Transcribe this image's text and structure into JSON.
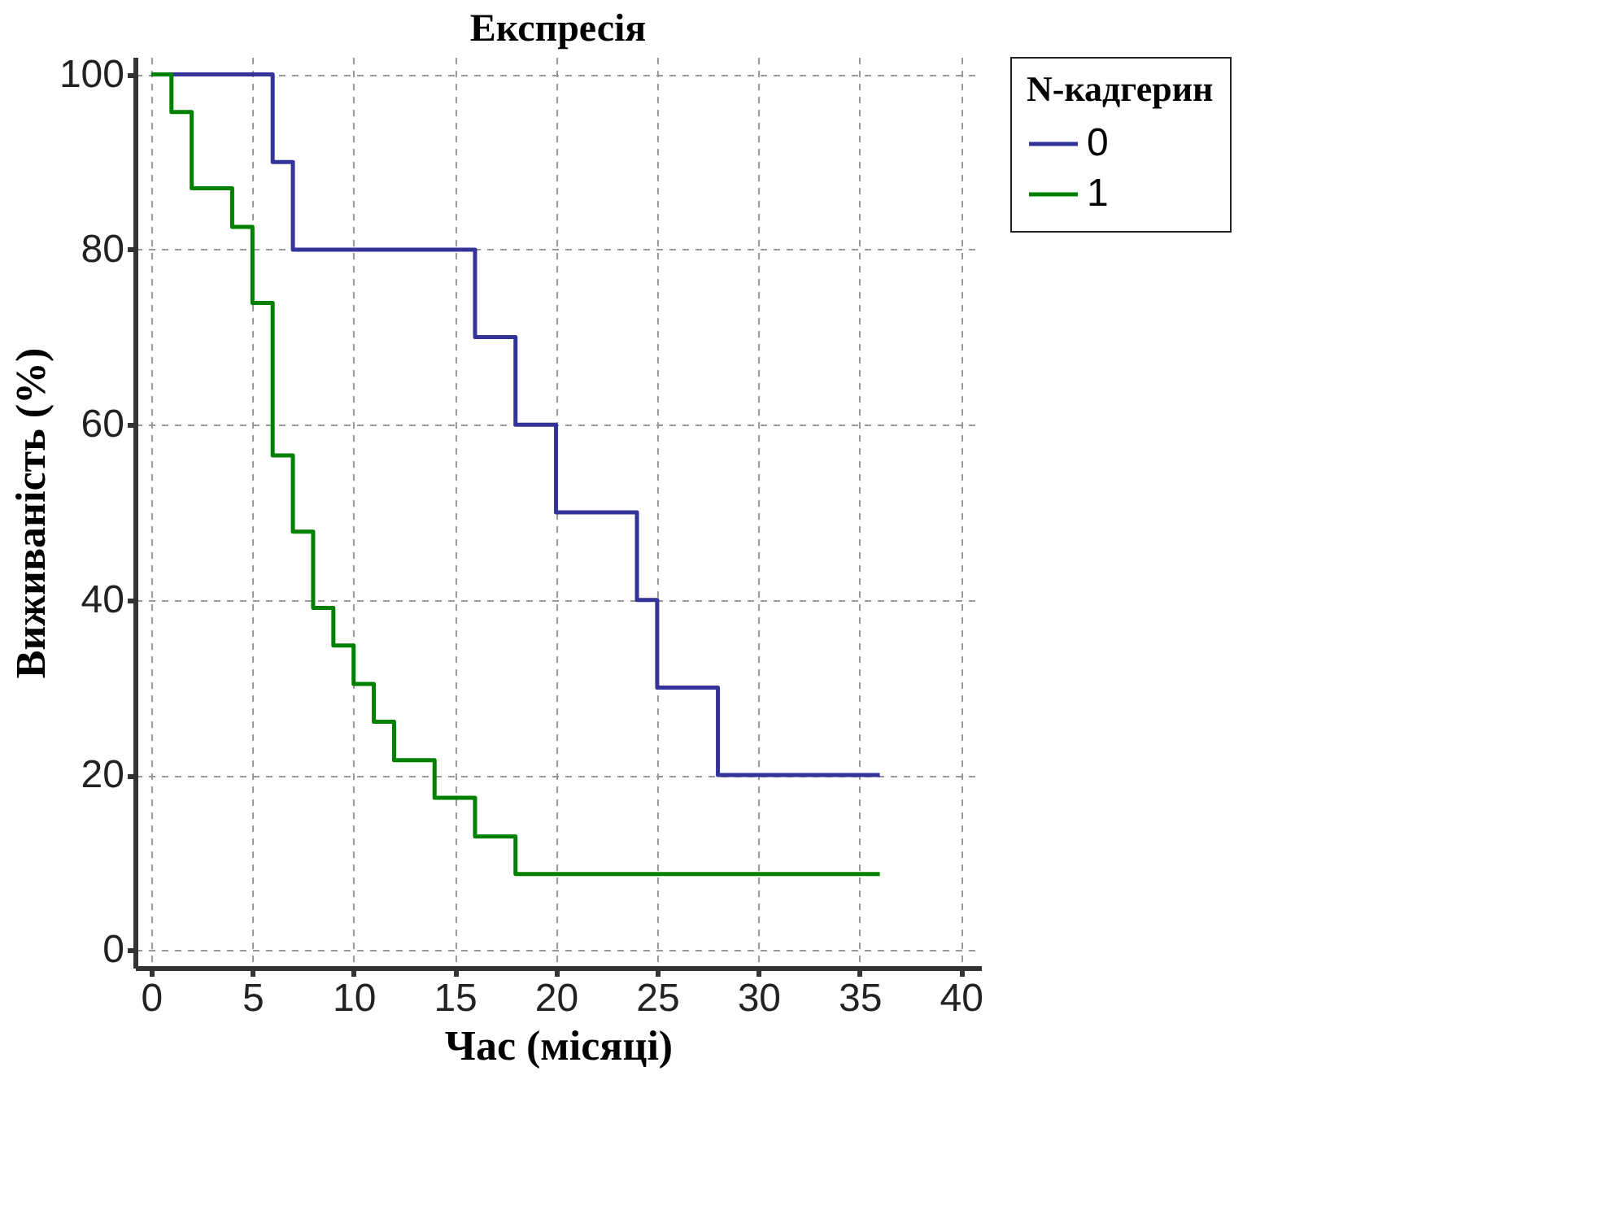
{
  "chart_data": {
    "type": "step",
    "title": "Експресія",
    "xlabel": "Час (місяці)",
    "ylabel": "Виживаність (%)",
    "legend_title": "N-кадгерин",
    "series": [
      {
        "name": "0",
        "color": "#333399",
        "x": [
          0,
          6,
          7,
          16,
          18,
          20,
          24,
          25,
          28,
          36
        ],
        "values": [
          100,
          90,
          80,
          70,
          60,
          50,
          40,
          30,
          20,
          20
        ]
      },
      {
        "name": "1",
        "color": "#008000",
        "x": [
          0,
          1,
          2,
          4,
          5,
          6,
          7,
          8,
          9,
          10,
          11,
          12,
          14,
          16,
          18,
          36
        ],
        "values": [
          100,
          95.7,
          87,
          82.6,
          73.9,
          56.5,
          47.8,
          39.1,
          34.8,
          30.4,
          26.1,
          21.7,
          17.4,
          13,
          8.7,
          8.7
        ]
      }
    ],
    "xlim": [
      -0.8,
      41
    ],
    "xticks": [
      0,
      5,
      10,
      15,
      20,
      25,
      30,
      35,
      40
    ],
    "ylim": [
      -2,
      102
    ],
    "yticks": [
      0,
      20,
      40,
      60,
      80,
      100
    ],
    "grid": true,
    "legend": "right",
    "line_style": "solid",
    "marker": "none"
  }
}
